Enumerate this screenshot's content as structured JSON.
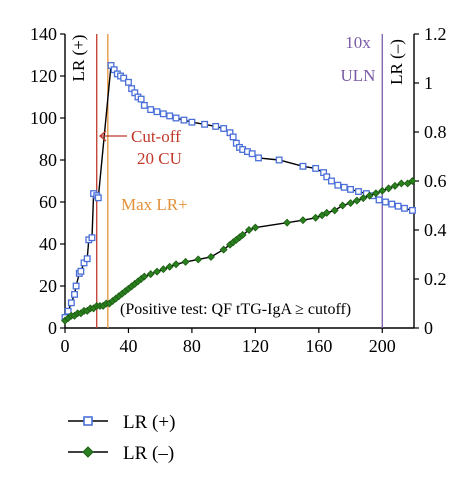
{
  "chart_data": {
    "type": "line",
    "x_ticks": [
      "0",
      "40",
      "80",
      "120",
      "160",
      "200"
    ],
    "y_left_ticks": [
      "0",
      "20",
      "40",
      "60",
      "80",
      "100",
      "120",
      "140"
    ],
    "y_right_ticks": [
      "0",
      "0.2",
      "0.4",
      "0.6",
      "0.8",
      "1",
      "1.2"
    ],
    "xlim": [
      0,
      220
    ],
    "ylim_left": [
      0,
      140
    ],
    "ylim_right": [
      0,
      1.2
    ],
    "grid": false,
    "legend_position": "bottom-left",
    "series": [
      {
        "name": "LR (+)",
        "axis": "left",
        "color": "#4a6fd8",
        "marker": "square",
        "points": [
          [
            0,
            5
          ],
          [
            2,
            8
          ],
          [
            4,
            12
          ],
          [
            6,
            16
          ],
          [
            7,
            20
          ],
          [
            9,
            26
          ],
          [
            10,
            27
          ],
          [
            12,
            31
          ],
          [
            14,
            33
          ],
          [
            15,
            42
          ],
          [
            17,
            43
          ],
          [
            18,
            64
          ],
          [
            20,
            63
          ],
          [
            21,
            62
          ],
          [
            29,
            125
          ],
          [
            31,
            123
          ],
          [
            33,
            121
          ],
          [
            35,
            120
          ],
          [
            37,
            119
          ],
          [
            40,
            117
          ],
          [
            42,
            114
          ],
          [
            44,
            112
          ],
          [
            46,
            110
          ],
          [
            48,
            109
          ],
          [
            50,
            106
          ],
          [
            54,
            104
          ],
          [
            58,
            103
          ],
          [
            62,
            102
          ],
          [
            66,
            101
          ],
          [
            70,
            100
          ],
          [
            75,
            99
          ],
          [
            80,
            98
          ],
          [
            88,
            97
          ],
          [
            95,
            96
          ],
          [
            100,
            95
          ],
          [
            104,
            93
          ],
          [
            106,
            91
          ],
          [
            108,
            88
          ],
          [
            110,
            86
          ],
          [
            112,
            85
          ],
          [
            115,
            84
          ],
          [
            118,
            83
          ],
          [
            122,
            81
          ],
          [
            135,
            80
          ],
          [
            150,
            77
          ],
          [
            158,
            76
          ],
          [
            163,
            74
          ],
          [
            165,
            72
          ],
          [
            168,
            70
          ],
          [
            172,
            68
          ],
          [
            176,
            67
          ],
          [
            180,
            66
          ],
          [
            185,
            65
          ],
          [
            190,
            64
          ],
          [
            194,
            63
          ],
          [
            198,
            61
          ],
          [
            202,
            60
          ],
          [
            206,
            59
          ],
          [
            210,
            58
          ],
          [
            214,
            57
          ],
          [
            219,
            56
          ]
        ]
      },
      {
        "name": "LR (–)",
        "axis": "right",
        "color": "#2a7f1e",
        "marker": "diamond",
        "points": [
          [
            0,
            0.03
          ],
          [
            2,
            0.04
          ],
          [
            4,
            0.05
          ],
          [
            6,
            0.05
          ],
          [
            8,
            0.06
          ],
          [
            10,
            0.06
          ],
          [
            12,
            0.07
          ],
          [
            14,
            0.07
          ],
          [
            16,
            0.08
          ],
          [
            18,
            0.08
          ],
          [
            20,
            0.09
          ],
          [
            22,
            0.09
          ],
          [
            24,
            0.09
          ],
          [
            26,
            0.1
          ],
          [
            28,
            0.1
          ],
          [
            30,
            0.11
          ],
          [
            32,
            0.12
          ],
          [
            34,
            0.13
          ],
          [
            36,
            0.14
          ],
          [
            38,
            0.15
          ],
          [
            40,
            0.16
          ],
          [
            42,
            0.17
          ],
          [
            44,
            0.18
          ],
          [
            46,
            0.19
          ],
          [
            48,
            0.2
          ],
          [
            50,
            0.21
          ],
          [
            54,
            0.22
          ],
          [
            58,
            0.23
          ],
          [
            62,
            0.24
          ],
          [
            66,
            0.25
          ],
          [
            70,
            0.26
          ],
          [
            76,
            0.27
          ],
          [
            84,
            0.28
          ],
          [
            92,
            0.29
          ],
          [
            100,
            0.32
          ],
          [
            104,
            0.34
          ],
          [
            106,
            0.35
          ],
          [
            108,
            0.36
          ],
          [
            110,
            0.37
          ],
          [
            112,
            0.38
          ],
          [
            116,
            0.4
          ],
          [
            120,
            0.41
          ],
          [
            140,
            0.43
          ],
          [
            150,
            0.44
          ],
          [
            158,
            0.45
          ],
          [
            162,
            0.46
          ],
          [
            165,
            0.47
          ],
          [
            170,
            0.48
          ],
          [
            175,
            0.5
          ],
          [
            180,
            0.51
          ],
          [
            184,
            0.52
          ],
          [
            188,
            0.53
          ],
          [
            192,
            0.54
          ],
          [
            196,
            0.55
          ],
          [
            200,
            0.56
          ],
          [
            204,
            0.57
          ],
          [
            208,
            0.58
          ],
          [
            212,
            0.59
          ],
          [
            216,
            0.59
          ],
          [
            219,
            0.6
          ]
        ]
      }
    ],
    "reference_lines": [
      {
        "name": "cutoff",
        "x": 20,
        "color": "#c0392b"
      },
      {
        "name": "max-lr",
        "x": 27,
        "color": "#e3913a"
      },
      {
        "name": "uln-10x",
        "x": 200,
        "color": "#7a5ba6"
      }
    ],
    "annotations": {
      "lr_pos_label": "LR (+)",
      "lr_neg_label": "LR (–)",
      "uln_top": "10x",
      "uln_bottom": "ULN",
      "cutoff_line1": "Cut-off",
      "cutoff_line2": "20 CU",
      "max_lr": "Max LR+",
      "positive_test": "(Positive test: QF tTG-IgA ≥ cutoff)"
    }
  },
  "legend": {
    "items": [
      {
        "label": "LR (+)",
        "color": "#4a6fd8",
        "marker": "square"
      },
      {
        "label": "LR (–)",
        "color": "#2a7f1e",
        "marker": "diamond"
      }
    ]
  }
}
